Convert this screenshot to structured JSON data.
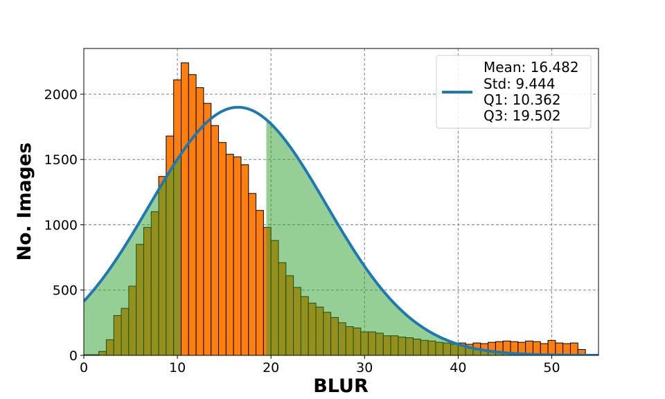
{
  "chart_data": {
    "type": "bar",
    "xlabel": "BLUR",
    "ylabel": "No. Images",
    "xlim": [
      0,
      55
    ],
    "ylim": [
      0,
      2350
    ],
    "xticks": [
      0,
      10,
      20,
      30,
      40,
      50
    ],
    "yticks": [
      0,
      500,
      1000,
      1500,
      2000
    ],
    "grid": true,
    "legend_position": "top-right",
    "legend": {
      "lines": [
        "Mean: 16.482",
        "Std: 9.444",
        "Q1: 10.362",
        "Q3: 19.502"
      ]
    },
    "histogram": {
      "bin_start": 0,
      "bin_width": 0.8,
      "counts": [
        5,
        5,
        30,
        120,
        305,
        360,
        530,
        850,
        980,
        1100,
        1370,
        1680,
        2110,
        2240,
        2150,
        2050,
        1930,
        1760,
        1630,
        1540,
        1520,
        1460,
        1240,
        1110,
        980,
        880,
        710,
        610,
        520,
        450,
        400,
        370,
        330,
        290,
        250,
        220,
        210,
        180,
        180,
        170,
        150,
        150,
        140,
        135,
        125,
        115,
        110,
        100,
        95,
        85,
        95,
        85,
        95,
        90,
        100,
        105,
        110,
        105,
        100,
        110,
        105,
        90,
        115,
        95,
        90,
        95,
        45
      ],
      "bar_color": "#ff7f0e",
      "edge_color": "#000000"
    },
    "normal_curve": {
      "name": "Mean: 16.482\nStd: 9.444\nQ1: 10.362\nQ3: 19.502",
      "mean": 16.482,
      "std": 9.444,
      "peak": 1900,
      "color": "#1f77b4"
    },
    "shaded_regions": [
      {
        "from": 0,
        "to": 10.362,
        "color": "#2ca02c",
        "opacity": 0.5
      },
      {
        "from": 19.502,
        "to": 55,
        "color": "#2ca02c",
        "opacity": 0.5
      }
    ]
  }
}
